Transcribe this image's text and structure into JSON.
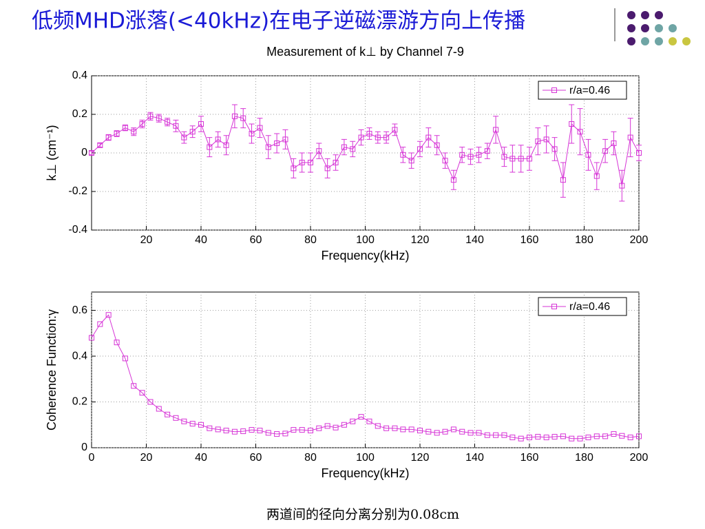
{
  "slide": {
    "title": "低频MHD涨落(<40kHz)在电子逆磁漂游方向上传播",
    "footer": "两道间的径向分离分别为0.08cm"
  },
  "chart_data": [
    {
      "type": "line",
      "title": "Measurement of k⊥ by Channel 7-9",
      "x_label": "Frequency(kHz)",
      "y_label": "k⊥ (cm⁻¹)",
      "xlim": [
        0,
        200
      ],
      "xticks": [
        20,
        40,
        60,
        80,
        100,
        120,
        140,
        160,
        180,
        200
      ],
      "ylim": [
        -0.4,
        0.4
      ],
      "yticks": [
        -0.4,
        -0.2,
        0,
        0.2,
        0.4
      ],
      "legend": "upper right",
      "x": [
        0,
        3.1,
        6.2,
        9.2,
        12.3,
        15.4,
        18.5,
        21.5,
        24.6,
        27.7,
        30.8,
        33.8,
        36.9,
        40,
        43.1,
        46.2,
        49.2,
        52.3,
        55.4,
        58.5,
        61.5,
        64.6,
        67.7,
        70.8,
        73.8,
        76.9,
        80,
        83.1,
        86.2,
        89.2,
        92.3,
        95.4,
        98.5,
        101.5,
        104.6,
        107.7,
        110.8,
        113.8,
        116.9,
        120,
        123.1,
        126.2,
        129.2,
        132.3,
        135.4,
        138.5,
        141.5,
        144.6,
        147.7,
        150.8,
        153.8,
        156.9,
        160,
        163.1,
        166.2,
        169.2,
        172.3,
        175.4,
        178.5,
        181.5,
        184.6,
        187.7,
        190.8,
        193.8,
        196.9,
        200
      ],
      "series": [
        {
          "name": "r/a=0.46",
          "color": "#d633d6",
          "values": [
            0,
            0.04,
            0.08,
            0.1,
            0.13,
            0.11,
            0.15,
            0.19,
            0.18,
            0.16,
            0.14,
            0.08,
            0.11,
            0.15,
            0.03,
            0.07,
            0.04,
            0.19,
            0.18,
            0.1,
            0.13,
            0.03,
            0.05,
            0.07,
            -0.08,
            -0.05,
            -0.05,
            0.01,
            -0.08,
            -0.05,
            0.03,
            0.02,
            0.08,
            0.1,
            0.08,
            0.08,
            0.12,
            -0.01,
            -0.04,
            0.02,
            0.08,
            0.04,
            -0.04,
            -0.14,
            -0.01,
            -0.02,
            -0.01,
            0.01,
            0.12,
            -0.02,
            -0.03,
            -0.03,
            -0.03,
            0.06,
            0.07,
            0.02,
            -0.14,
            0.15,
            0.11,
            -0.01,
            -0.12,
            0.01,
            0.05,
            -0.17,
            0.08,
            0
          ],
          "errors": [
            0.01,
            0.01,
            0.015,
            0.015,
            0.015,
            0.02,
            0.02,
            0.02,
            0.02,
            0.02,
            0.03,
            0.03,
            0.03,
            0.04,
            0.05,
            0.04,
            0.05,
            0.06,
            0.05,
            0.05,
            0.05,
            0.06,
            0.05,
            0.05,
            0.05,
            0.05,
            0.05,
            0.04,
            0.05,
            0.04,
            0.04,
            0.04,
            0.04,
            0.03,
            0.03,
            0.03,
            0.03,
            0.04,
            0.04,
            0.04,
            0.05,
            0.05,
            0.04,
            0.05,
            0.04,
            0.04,
            0.04,
            0.04,
            0.07,
            0.05,
            0.07,
            0.07,
            0.06,
            0.07,
            0.07,
            0.06,
            0.09,
            0.1,
            0.12,
            0.08,
            0.07,
            0.06,
            0.06,
            0.08,
            0.1,
            0.04
          ]
        }
      ]
    },
    {
      "type": "line",
      "x_label": "Frequency(kHz)",
      "y_label": "Coherence Function:γ",
      "xlim": [
        0,
        200
      ],
      "xticks": [
        0,
        20,
        40,
        60,
        80,
        100,
        120,
        140,
        160,
        180,
        200
      ],
      "ylim": [
        0,
        0.68
      ],
      "yticks": [
        0,
        0.2,
        0.4,
        0.6
      ],
      "legend": "upper right",
      "x": [
        0,
        3.1,
        6.2,
        9.2,
        12.3,
        15.4,
        18.5,
        21.5,
        24.6,
        27.7,
        30.8,
        33.8,
        36.9,
        40,
        43.1,
        46.2,
        49.2,
        52.3,
        55.4,
        58.5,
        61.5,
        64.6,
        67.7,
        70.8,
        73.8,
        76.9,
        80,
        83.1,
        86.2,
        89.2,
        92.3,
        95.4,
        98.5,
        101.5,
        104.6,
        107.7,
        110.8,
        113.8,
        116.9,
        120,
        123.1,
        126.2,
        129.2,
        132.3,
        135.4,
        138.5,
        141.5,
        144.6,
        147.7,
        150.8,
        153.8,
        156.9,
        160,
        163.1,
        166.2,
        169.2,
        172.3,
        175.4,
        178.5,
        181.5,
        184.6,
        187.7,
        190.8,
        193.8,
        196.9,
        200
      ],
      "series": [
        {
          "name": "r/a=0.46",
          "color": "#d633d6",
          "values": [
            0.48,
            0.54,
            0.58,
            0.46,
            0.39,
            0.27,
            0.24,
            0.2,
            0.17,
            0.145,
            0.13,
            0.115,
            0.105,
            0.1,
            0.085,
            0.08,
            0.075,
            0.07,
            0.072,
            0.078,
            0.075,
            0.065,
            0.06,
            0.062,
            0.078,
            0.078,
            0.075,
            0.085,
            0.095,
            0.088,
            0.1,
            0.115,
            0.135,
            0.115,
            0.095,
            0.085,
            0.085,
            0.08,
            0.08,
            0.075,
            0.07,
            0.065,
            0.07,
            0.08,
            0.07,
            0.065,
            0.065,
            0.055,
            0.055,
            0.055,
            0.045,
            0.04,
            0.045,
            0.048,
            0.045,
            0.048,
            0.05,
            0.04,
            0.04,
            0.045,
            0.05,
            0.05,
            0.06,
            0.052,
            0.045,
            0.05
          ]
        }
      ]
    }
  ]
}
